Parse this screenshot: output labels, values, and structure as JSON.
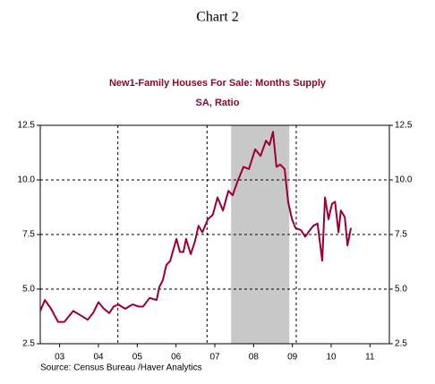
{
  "page_title": "Chart 2",
  "chart_data": {
    "type": "line",
    "title": "New1-Family Houses For Sale: Months Supply",
    "subtitle": "SA, Ratio",
    "source": "Source:  Census Bureau /Haver Analytics",
    "xlim": [
      2003,
      2012
    ],
    "xticks": [
      {
        "value": 2003.5,
        "label": "03"
      },
      {
        "value": 2004.5,
        "label": "04"
      },
      {
        "value": 2005.5,
        "label": "05"
      },
      {
        "value": 2006.5,
        "label": "06"
      },
      {
        "value": 2007.5,
        "label": "07"
      },
      {
        "value": 2008.5,
        "label": "08"
      },
      {
        "value": 2009.5,
        "label": "09"
      },
      {
        "value": 2010.5,
        "label": "10"
      },
      {
        "value": 2011.5,
        "label": "11"
      }
    ],
    "x_gridlines": [
      2005.0,
      2007.3,
      2009.6
    ],
    "ylim": [
      2.5,
      12.5
    ],
    "yticks": [
      2.5,
      {
        "value": 5,
        "label": "5.0"
      },
      7.5,
      {
        "value": 10,
        "label": "10.0"
      },
      12.5
    ],
    "y_gridlines": [
      5,
      7.5,
      10
    ],
    "recession": [
      2007.92,
      2009.42
    ],
    "recession_color": "#c8c8c8",
    "series": [
      {
        "name": "Months Supply",
        "color": "#9b0030",
        "x": [
          2003.0,
          2003.12,
          2003.28,
          2003.46,
          2003.62,
          2003.85,
          2004.04,
          2004.22,
          2004.36,
          2004.5,
          2004.64,
          2004.78,
          2004.89,
          2005.01,
          2005.19,
          2005.38,
          2005.54,
          2005.65,
          2005.82,
          2006.0,
          2006.07,
          2006.16,
          2006.25,
          2006.35,
          2006.51,
          2006.6,
          2006.69,
          2006.76,
          2006.88,
          2006.99,
          2007.08,
          2007.18,
          2007.32,
          2007.45,
          2007.57,
          2007.71,
          2007.85,
          2007.96,
          2008.08,
          2008.24,
          2008.38,
          2008.54,
          2008.68,
          2008.82,
          2008.91,
          2009.0,
          2009.09,
          2009.19,
          2009.3,
          2009.39,
          2009.49,
          2009.58,
          2009.72,
          2009.83,
          2009.95,
          2010.04,
          2010.15,
          2010.27,
          2010.34,
          2010.43,
          2010.52,
          2010.6,
          2010.69,
          2010.75,
          2010.85,
          2010.92,
          2011.01
        ],
        "values": [
          4.0,
          4.5,
          4.1,
          3.5,
          3.5,
          4.0,
          3.8,
          3.6,
          3.9,
          4.4,
          4.1,
          3.9,
          4.2,
          4.3,
          4.1,
          4.3,
          4.2,
          4.2,
          4.6,
          4.5,
          5.1,
          5.4,
          6.1,
          6.3,
          7.3,
          6.7,
          6.7,
          7.3,
          6.6,
          7.2,
          7.9,
          7.6,
          8.2,
          8.4,
          9.2,
          8.6,
          9.5,
          9.3,
          9.9,
          10.6,
          10.5,
          11.4,
          11.1,
          11.8,
          11.6,
          12.2,
          10.6,
          10.7,
          10.5,
          9.0,
          8.2,
          7.8,
          7.7,
          7.4,
          7.7,
          7.9,
          8.0,
          6.3,
          9.2,
          8.2,
          8.9,
          9.0,
          7.6,
          8.6,
          8.3,
          7.0,
          7.8
        ]
      }
    ]
  }
}
